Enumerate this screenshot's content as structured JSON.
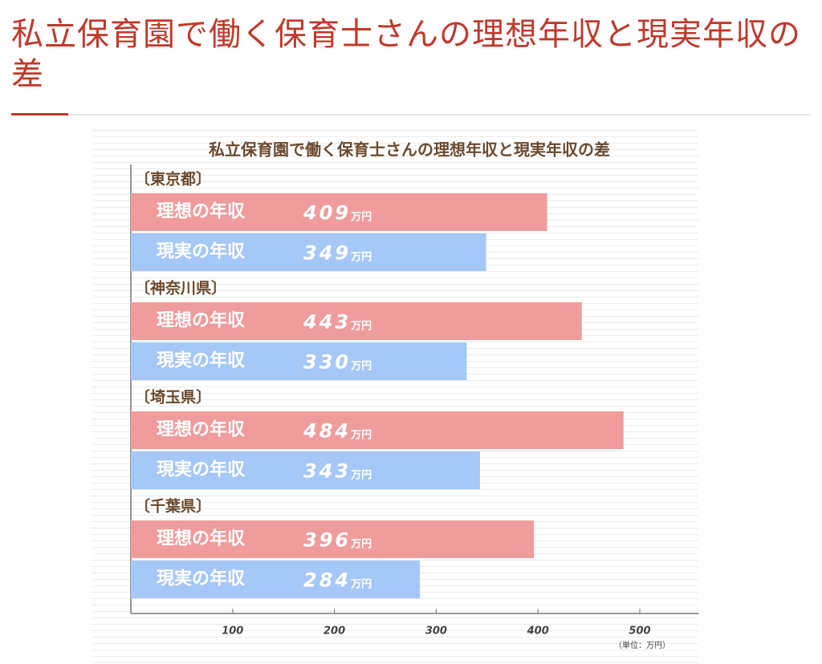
{
  "header": {
    "title": "私立保育園で働く保育士さんの理想年収と現実年収の差"
  },
  "chart_data": {
    "type": "bar",
    "orientation": "horizontal",
    "title": "私立保育園で働く保育士さんの理想年収と現実年収の差",
    "categories": [
      "〔東京都〕",
      "〔神奈川県〕",
      "〔埼玉県〕",
      "〔千葉県〕"
    ],
    "series": [
      {
        "name": "理想の年収",
        "color": "#f09c9c",
        "values": [
          409,
          443,
          484,
          396
        ],
        "value_labels": [
          "409万円",
          "443万円",
          "484万円",
          "396万円"
        ]
      },
      {
        "name": "現実の年収",
        "color": "#a5c8f6",
        "values": [
          349,
          330,
          343,
          284
        ],
        "value_labels": [
          "349万円",
          "330万円",
          "343万円",
          "284万円"
        ]
      }
    ],
    "xlim": [
      0,
      550
    ],
    "xticks": [
      100,
      200,
      300,
      400,
      500
    ],
    "unit_label": "（単位：万円）"
  }
}
